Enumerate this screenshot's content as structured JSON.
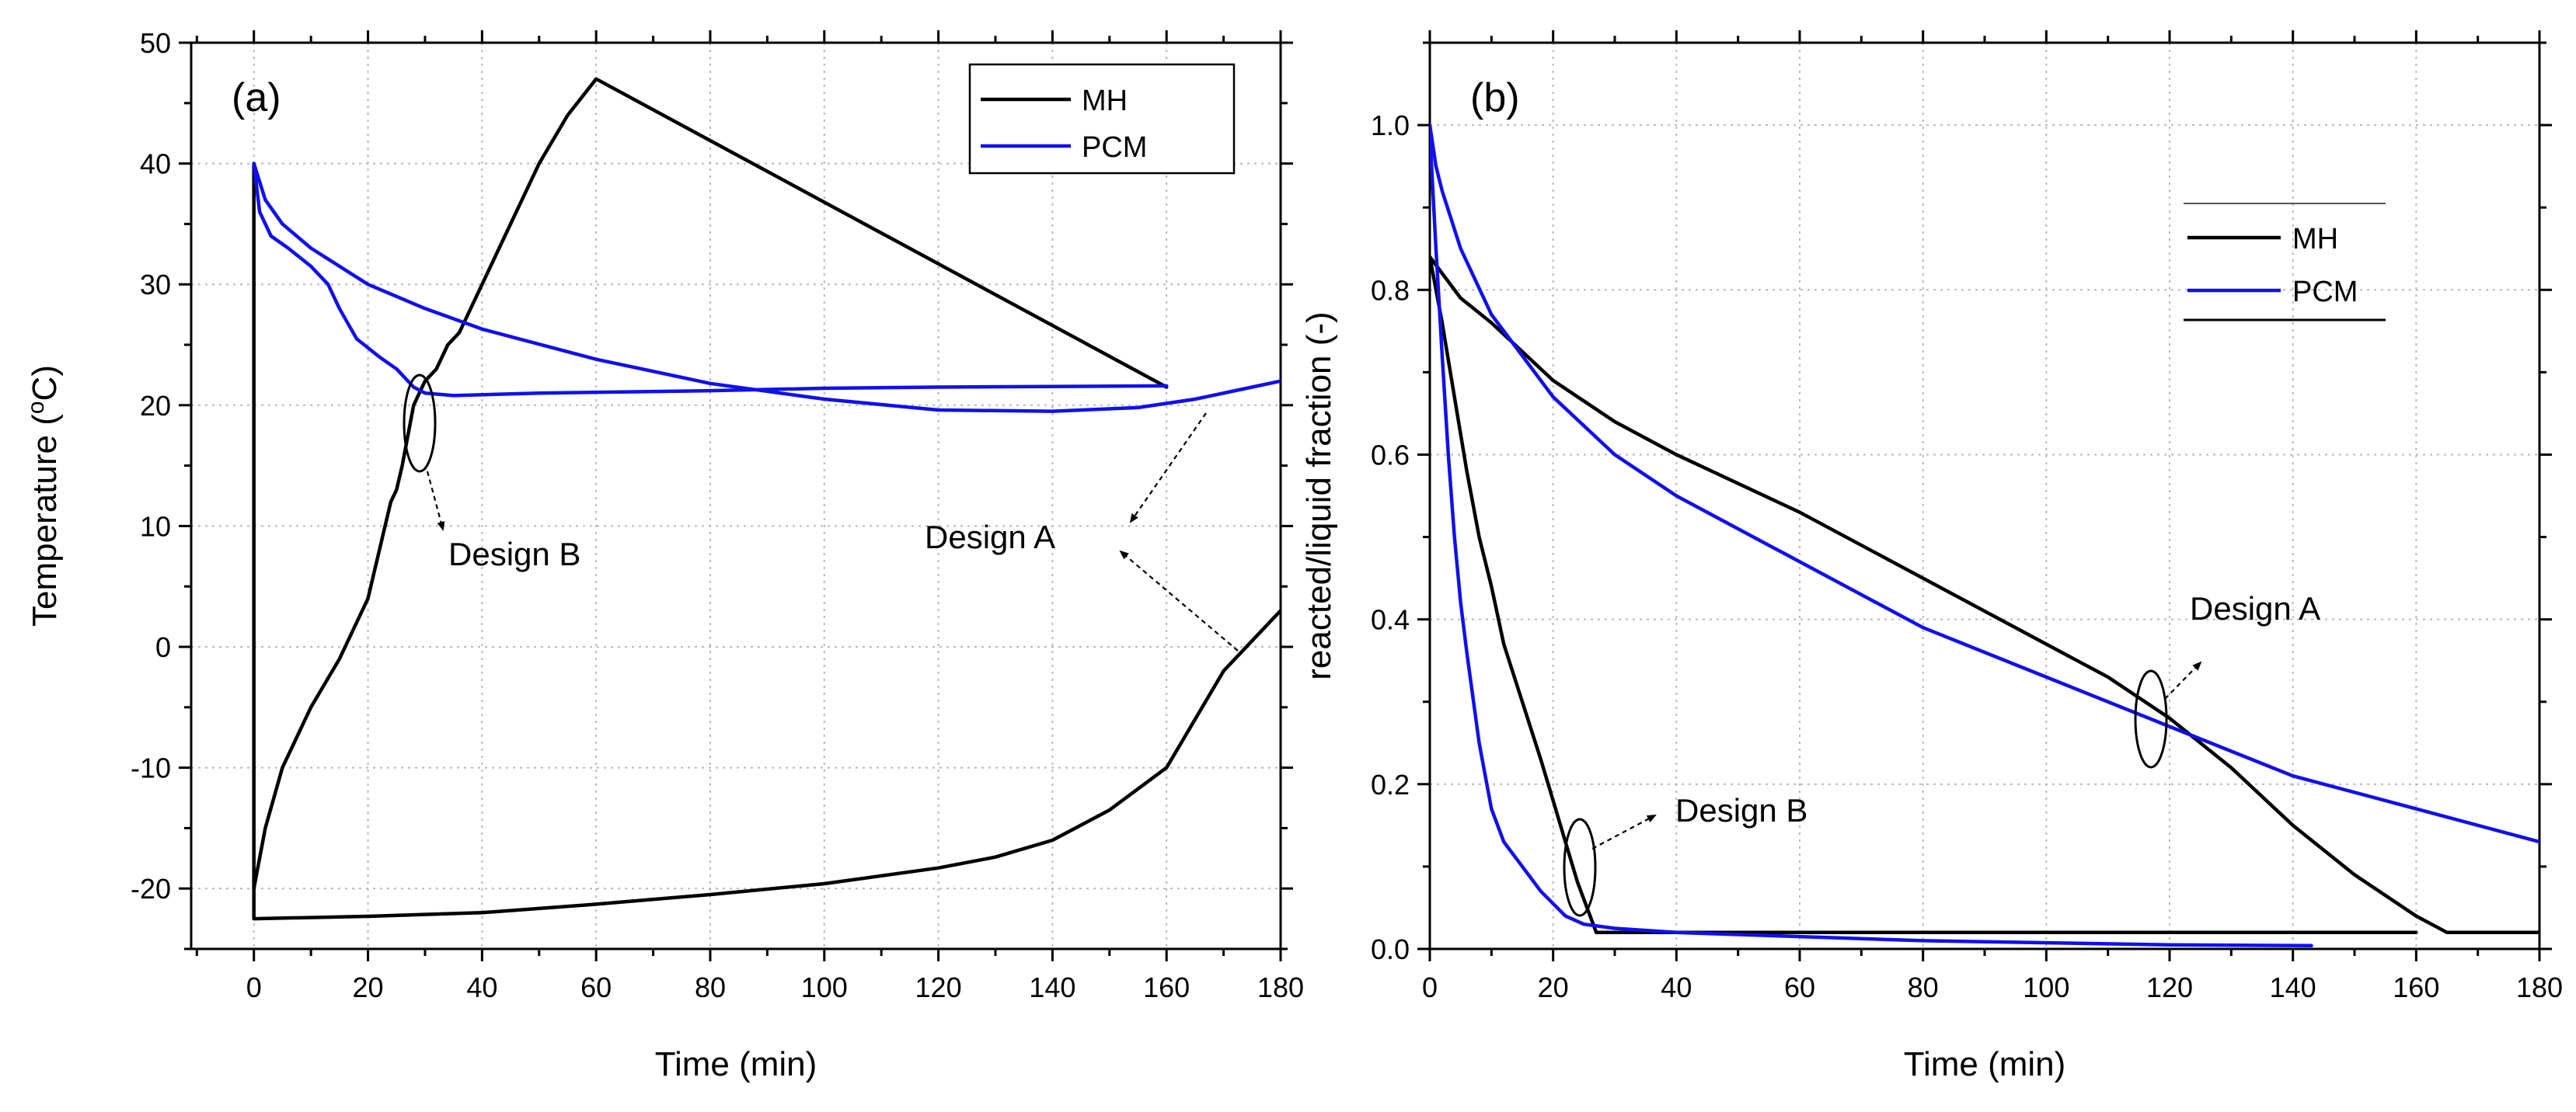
{
  "colors": {
    "mh": "#000000",
    "pcm": "#1010ee",
    "grid": "#b9b9b9",
    "axis": "#000000"
  },
  "chart_data": [
    {
      "type": "line",
      "panel_label": "(a)",
      "xlabel": "Time (min)",
      "ylabel_main": "Temperature (",
      "ylabel_sup": "o",
      "ylabel_tail": "C)",
      "xlim": [
        -11,
        180
      ],
      "ylim": [
        -25,
        50
      ],
      "xticks": [
        0,
        20,
        40,
        60,
        80,
        100,
        120,
        140,
        160,
        180
      ],
      "yticks": [
        -20,
        -10,
        0,
        10,
        20,
        30,
        40,
        50
      ],
      "grid": true,
      "legend_position": "top-right",
      "legend": [
        {
          "name": "MH",
          "color": "#000000"
        },
        {
          "name": "PCM",
          "color": "#1010ee"
        }
      ],
      "series": [
        {
          "name": "MH Design B",
          "color": "#000000",
          "points": [
            [
              0,
              40
            ],
            [
              0,
              -20
            ],
            [
              2,
              -15
            ],
            [
              5,
              -10
            ],
            [
              10,
              -5
            ],
            [
              15,
              -1
            ],
            [
              20,
              4
            ],
            [
              22,
              8
            ],
            [
              24,
              12
            ],
            [
              25,
              13
            ],
            [
              26,
              15
            ],
            [
              28,
              20
            ],
            [
              29,
              21
            ],
            [
              30,
              22
            ],
            [
              32,
              23
            ],
            [
              34,
              25
            ],
            [
              36,
              26
            ],
            [
              40,
              30
            ],
            [
              44,
              34
            ],
            [
              50,
              40
            ],
            [
              55,
              44
            ],
            [
              60,
              47
            ],
            [
              160,
              21.5
            ]
          ]
        },
        {
          "name": "MH Design A",
          "color": "#000000",
          "points": [
            [
              0,
              -19
            ],
            [
              0,
              -22.5
            ],
            [
              20,
              -22.3
            ],
            [
              40,
              -22
            ],
            [
              60,
              -21.3
            ],
            [
              80,
              -20.5
            ],
            [
              100,
              -19.6
            ],
            [
              120,
              -18.3
            ],
            [
              130,
              -17.4
            ],
            [
              140,
              -16
            ],
            [
              150,
              -13.5
            ],
            [
              160,
              -10
            ],
            [
              165,
              -6
            ],
            [
              170,
              -2
            ],
            [
              175,
              0.5
            ],
            [
              180,
              3
            ]
          ]
        },
        {
          "name": "PCM Design B",
          "color": "#1010ee",
          "points": [
            [
              0,
              40
            ],
            [
              1,
              36
            ],
            [
              3,
              34
            ],
            [
              6,
              33
            ],
            [
              10,
              31.5
            ],
            [
              13,
              30
            ],
            [
              15,
              28
            ],
            [
              18,
              25.5
            ],
            [
              22,
              24
            ],
            [
              25,
              23
            ],
            [
              28,
              21.5
            ],
            [
              30,
              21
            ],
            [
              35,
              20.8
            ],
            [
              50,
              21
            ],
            [
              80,
              21.2
            ],
            [
              100,
              21.4
            ],
            [
              120,
              21.5
            ],
            [
              160,
              21.6
            ]
          ]
        },
        {
          "name": "PCM Design A",
          "color": "#1010ee",
          "points": [
            [
              0,
              40
            ],
            [
              2,
              37
            ],
            [
              5,
              35
            ],
            [
              10,
              33
            ],
            [
              20,
              30
            ],
            [
              30,
              28
            ],
            [
              40,
              26.3
            ],
            [
              60,
              23.8
            ],
            [
              80,
              21.8
            ],
            [
              100,
              20.5
            ],
            [
              120,
              19.6
            ],
            [
              140,
              19.5
            ],
            [
              155,
              19.8
            ],
            [
              165,
              20.5
            ],
            [
              175,
              21.5
            ],
            [
              180,
              22
            ]
          ]
        }
      ],
      "annotations": [
        {
          "text": "Design B",
          "x": 32,
          "y": 10
        },
        {
          "text": "Design A",
          "x": 145,
          "y": 8
        }
      ]
    },
    {
      "type": "line",
      "panel_label": "(b)",
      "xlabel": "Time (min)",
      "ylabel": "reacted/liquid fraction (-)",
      "xlim": [
        0,
        180
      ],
      "ylim": [
        0,
        1.1
      ],
      "xticks": [
        0,
        20,
        40,
        60,
        80,
        100,
        120,
        140,
        160,
        180
      ],
      "yticks": [
        0.0,
        0.2,
        0.4,
        0.6,
        0.8,
        1.0
      ],
      "ytick_labels": [
        "0.0",
        "0.2",
        "0.4",
        "0.6",
        "0.8",
        "1.0"
      ],
      "grid": true,
      "legend_position": "top-right",
      "legend": [
        {
          "name": "MH",
          "color": "#000000"
        },
        {
          "name": "PCM",
          "color": "#1010ee"
        }
      ],
      "series": [
        {
          "name": "MH Design A",
          "color": "#000000",
          "points": [
            [
              0,
              0.84
            ],
            [
              1,
              0.83
            ],
            [
              5,
              0.79
            ],
            [
              10,
              0.76
            ],
            [
              20,
              0.69
            ],
            [
              30,
              0.64
            ],
            [
              40,
              0.6
            ],
            [
              60,
              0.53
            ],
            [
              80,
              0.45
            ],
            [
              100,
              0.37
            ],
            [
              110,
              0.33
            ],
            [
              120,
              0.28
            ],
            [
              130,
              0.22
            ],
            [
              140,
              0.15
            ],
            [
              150,
              0.09
            ],
            [
              160,
              0.04
            ],
            [
              165,
              0.02
            ],
            [
              180,
              0.02
            ]
          ]
        },
        {
          "name": "PCM Design A",
          "color": "#1010ee",
          "points": [
            [
              0,
              1.0
            ],
            [
              1,
              0.95
            ],
            [
              2,
              0.92
            ],
            [
              5,
              0.85
            ],
            [
              10,
              0.77
            ],
            [
              15,
              0.72
            ],
            [
              20,
              0.67
            ],
            [
              30,
              0.6
            ],
            [
              40,
              0.55
            ],
            [
              60,
              0.47
            ],
            [
              80,
              0.39
            ],
            [
              100,
              0.33
            ],
            [
              120,
              0.27
            ],
            [
              140,
              0.21
            ],
            [
              160,
              0.17
            ],
            [
              180,
              0.13
            ]
          ]
        },
        {
          "name": "MH Design B",
          "color": "#000000",
          "points": [
            [
              0,
              0.84
            ],
            [
              2,
              0.76
            ],
            [
              4,
              0.67
            ],
            [
              6,
              0.58
            ],
            [
              8,
              0.5
            ],
            [
              10,
              0.44
            ],
            [
              12,
              0.37
            ],
            [
              15,
              0.3
            ],
            [
              18,
              0.23
            ],
            [
              20,
              0.18
            ],
            [
              22,
              0.13
            ],
            [
              24,
              0.08
            ],
            [
              26,
              0.04
            ],
            [
              27,
              0.02
            ],
            [
              40,
              0.02
            ],
            [
              100,
              0.02
            ],
            [
              160,
              0.02
            ]
          ]
        },
        {
          "name": "PCM Design B",
          "color": "#1010ee",
          "points": [
            [
              0,
              0.99
            ],
            [
              1,
              0.85
            ],
            [
              2,
              0.72
            ],
            [
              3,
              0.6
            ],
            [
              4,
              0.5
            ],
            [
              5,
              0.42
            ],
            [
              6,
              0.36
            ],
            [
              8,
              0.25
            ],
            [
              10,
              0.17
            ],
            [
              12,
              0.13
            ],
            [
              14,
              0.11
            ],
            [
              18,
              0.07
            ],
            [
              22,
              0.04
            ],
            [
              25,
              0.03
            ],
            [
              30,
              0.025
            ],
            [
              40,
              0.02
            ],
            [
              60,
              0.015
            ],
            [
              80,
              0.01
            ],
            [
              120,
              0.005
            ],
            [
              143,
              0.004
            ]
          ]
        }
      ],
      "annotations": [
        {
          "text": "Design A",
          "x": 135,
          "y": 0.41
        },
        {
          "text": "Design B",
          "x": 44,
          "y": 0.16
        }
      ]
    }
  ]
}
